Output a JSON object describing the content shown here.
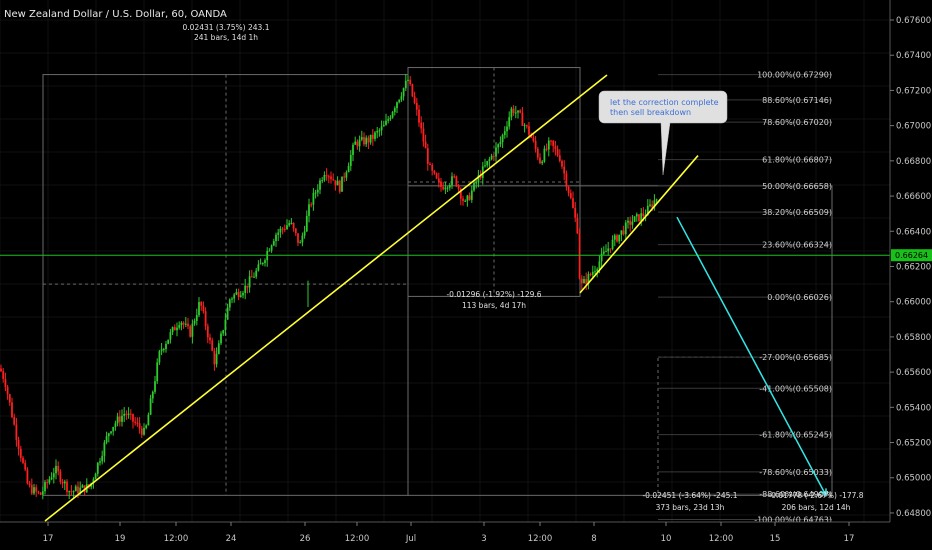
{
  "header": {
    "title": "New Zealand Dollar / U.S. Dollar, 60, OANDA"
  },
  "chart_data": {
    "type": "candlestick",
    "title": "New Zealand Dollar / U.S. Dollar, 60, OANDA",
    "instrument": "NZDUSD",
    "interval": "60",
    "source": "OANDA",
    "colors": {
      "up": "#2ecc2e",
      "down": "#ff2020",
      "trendline": "#ffff33",
      "projection": "#33e6e6",
      "price_line": "#19c019",
      "background": "#000000"
    },
    "y_axis": {
      "ylim": [
        0.6476,
        0.676
      ],
      "ticks": [
        "0.67600",
        "0.67400",
        "0.67200",
        "0.67000",
        "0.66800",
        "0.66600",
        "0.66400",
        "0.66200",
        "0.66000",
        "0.65800",
        "0.65600",
        "0.65400",
        "0.65200",
        "0.65000",
        "0.64800"
      ]
    },
    "x_axis": {
      "ticks": [
        "17",
        "19",
        "12:00",
        "24",
        "26",
        "12:00",
        "Jul",
        "3",
        "12:00",
        "8",
        "10",
        "12:00",
        "15",
        "17"
      ]
    },
    "current_price": {
      "label": "0.66264",
      "value": 0.66264
    },
    "fib_levels": [
      {
        "label": "100.00%(0.67290)",
        "value": 0.6729
      },
      {
        "label": "88.60%(0.67146)",
        "value": 0.67146
      },
      {
        "label": "78.60%(0.67020)",
        "value": 0.6702
      },
      {
        "label": "61.80%(0.66807)",
        "value": 0.66807
      },
      {
        "label": "50.00%(0.66658)",
        "value": 0.66658
      },
      {
        "label": "38.20%(0.66509)",
        "value": 0.66509
      },
      {
        "label": "23.60%(0.66324)",
        "value": 0.66324
      },
      {
        "label": "0.00%(0.66026)",
        "value": 0.66026
      },
      {
        "label": "-27.00%(0.65685)",
        "value": 0.65685
      },
      {
        "label": "-41.00%(0.65508)",
        "value": 0.65508
      },
      {
        "label": "-61.80%(0.65245)",
        "value": 0.65245
      },
      {
        "label": "-78.60%(0.65033)",
        "value": 0.65033
      },
      {
        "label": "-88.60%(0.64907)",
        "value": 0.64907
      },
      {
        "label": "-100.00%(0.64763)",
        "value": 0.64763
      }
    ],
    "measurements": [
      {
        "line1": "0.02431 (3.75%) 243.1",
        "line2": "241 bars, 14d 1h"
      },
      {
        "line1": "-0.01296 (-1.92%) -129.6",
        "line2": "113 bars, 4d 17h"
      },
      {
        "line1": "-0.02451 (-3.64%) -245.1",
        "line2": "373 bars, 23d 13h"
      },
      {
        "line1": "-0.01778 (-2.67%) -177.8",
        "line2": "206 bars, 12d 14h"
      }
    ],
    "annotation": {
      "text_line1": "let the correction complete",
      "text_line2": "then sell breakdown"
    },
    "series": [
      {
        "name": "NZDUSD",
        "anchor_points": [
          [
            0,
            0.6562
          ],
          [
            5,
            0.6555
          ],
          [
            16,
            0.6525
          ],
          [
            28,
            0.6495
          ],
          [
            40,
            0.649
          ],
          [
            55,
            0.6505
          ],
          [
            70,
            0.6492
          ],
          [
            90,
            0.6495
          ],
          [
            110,
            0.6528
          ],
          [
            125,
            0.6537
          ],
          [
            145,
            0.6525
          ],
          [
            160,
            0.6572
          ],
          [
            180,
            0.659
          ],
          [
            190,
            0.6582
          ],
          [
            200,
            0.66
          ],
          [
            215,
            0.6565
          ],
          [
            230,
            0.6602
          ],
          [
            245,
            0.6608
          ],
          [
            260,
            0.662
          ],
          [
            275,
            0.6638
          ],
          [
            290,
            0.6645
          ],
          [
            300,
            0.6632
          ],
          [
            310,
            0.6655
          ],
          [
            325,
            0.6675
          ],
          [
            340,
            0.6665
          ],
          [
            355,
            0.669
          ],
          [
            370,
            0.6692
          ],
          [
            385,
            0.67
          ],
          [
            395,
            0.6712
          ],
          [
            408,
            0.6726
          ],
          [
            418,
            0.6705
          ],
          [
            430,
            0.6675
          ],
          [
            440,
            0.6665
          ],
          [
            455,
            0.667
          ],
          [
            465,
            0.6655
          ],
          [
            480,
            0.6672
          ],
          [
            500,
            0.669
          ],
          [
            512,
            0.671
          ],
          [
            520,
            0.6705
          ],
          [
            530,
            0.6695
          ],
          [
            540,
            0.668
          ],
          [
            550,
            0.669
          ],
          [
            560,
            0.6682
          ],
          [
            570,
            0.666
          ],
          [
            578,
            0.664
          ],
          [
            580,
            0.6608
          ],
          [
            590,
            0.6615
          ],
          [
            610,
            0.6632
          ],
          [
            630,
            0.6645
          ],
          [
            645,
            0.665
          ],
          [
            658,
            0.666
          ]
        ]
      }
    ]
  }
}
